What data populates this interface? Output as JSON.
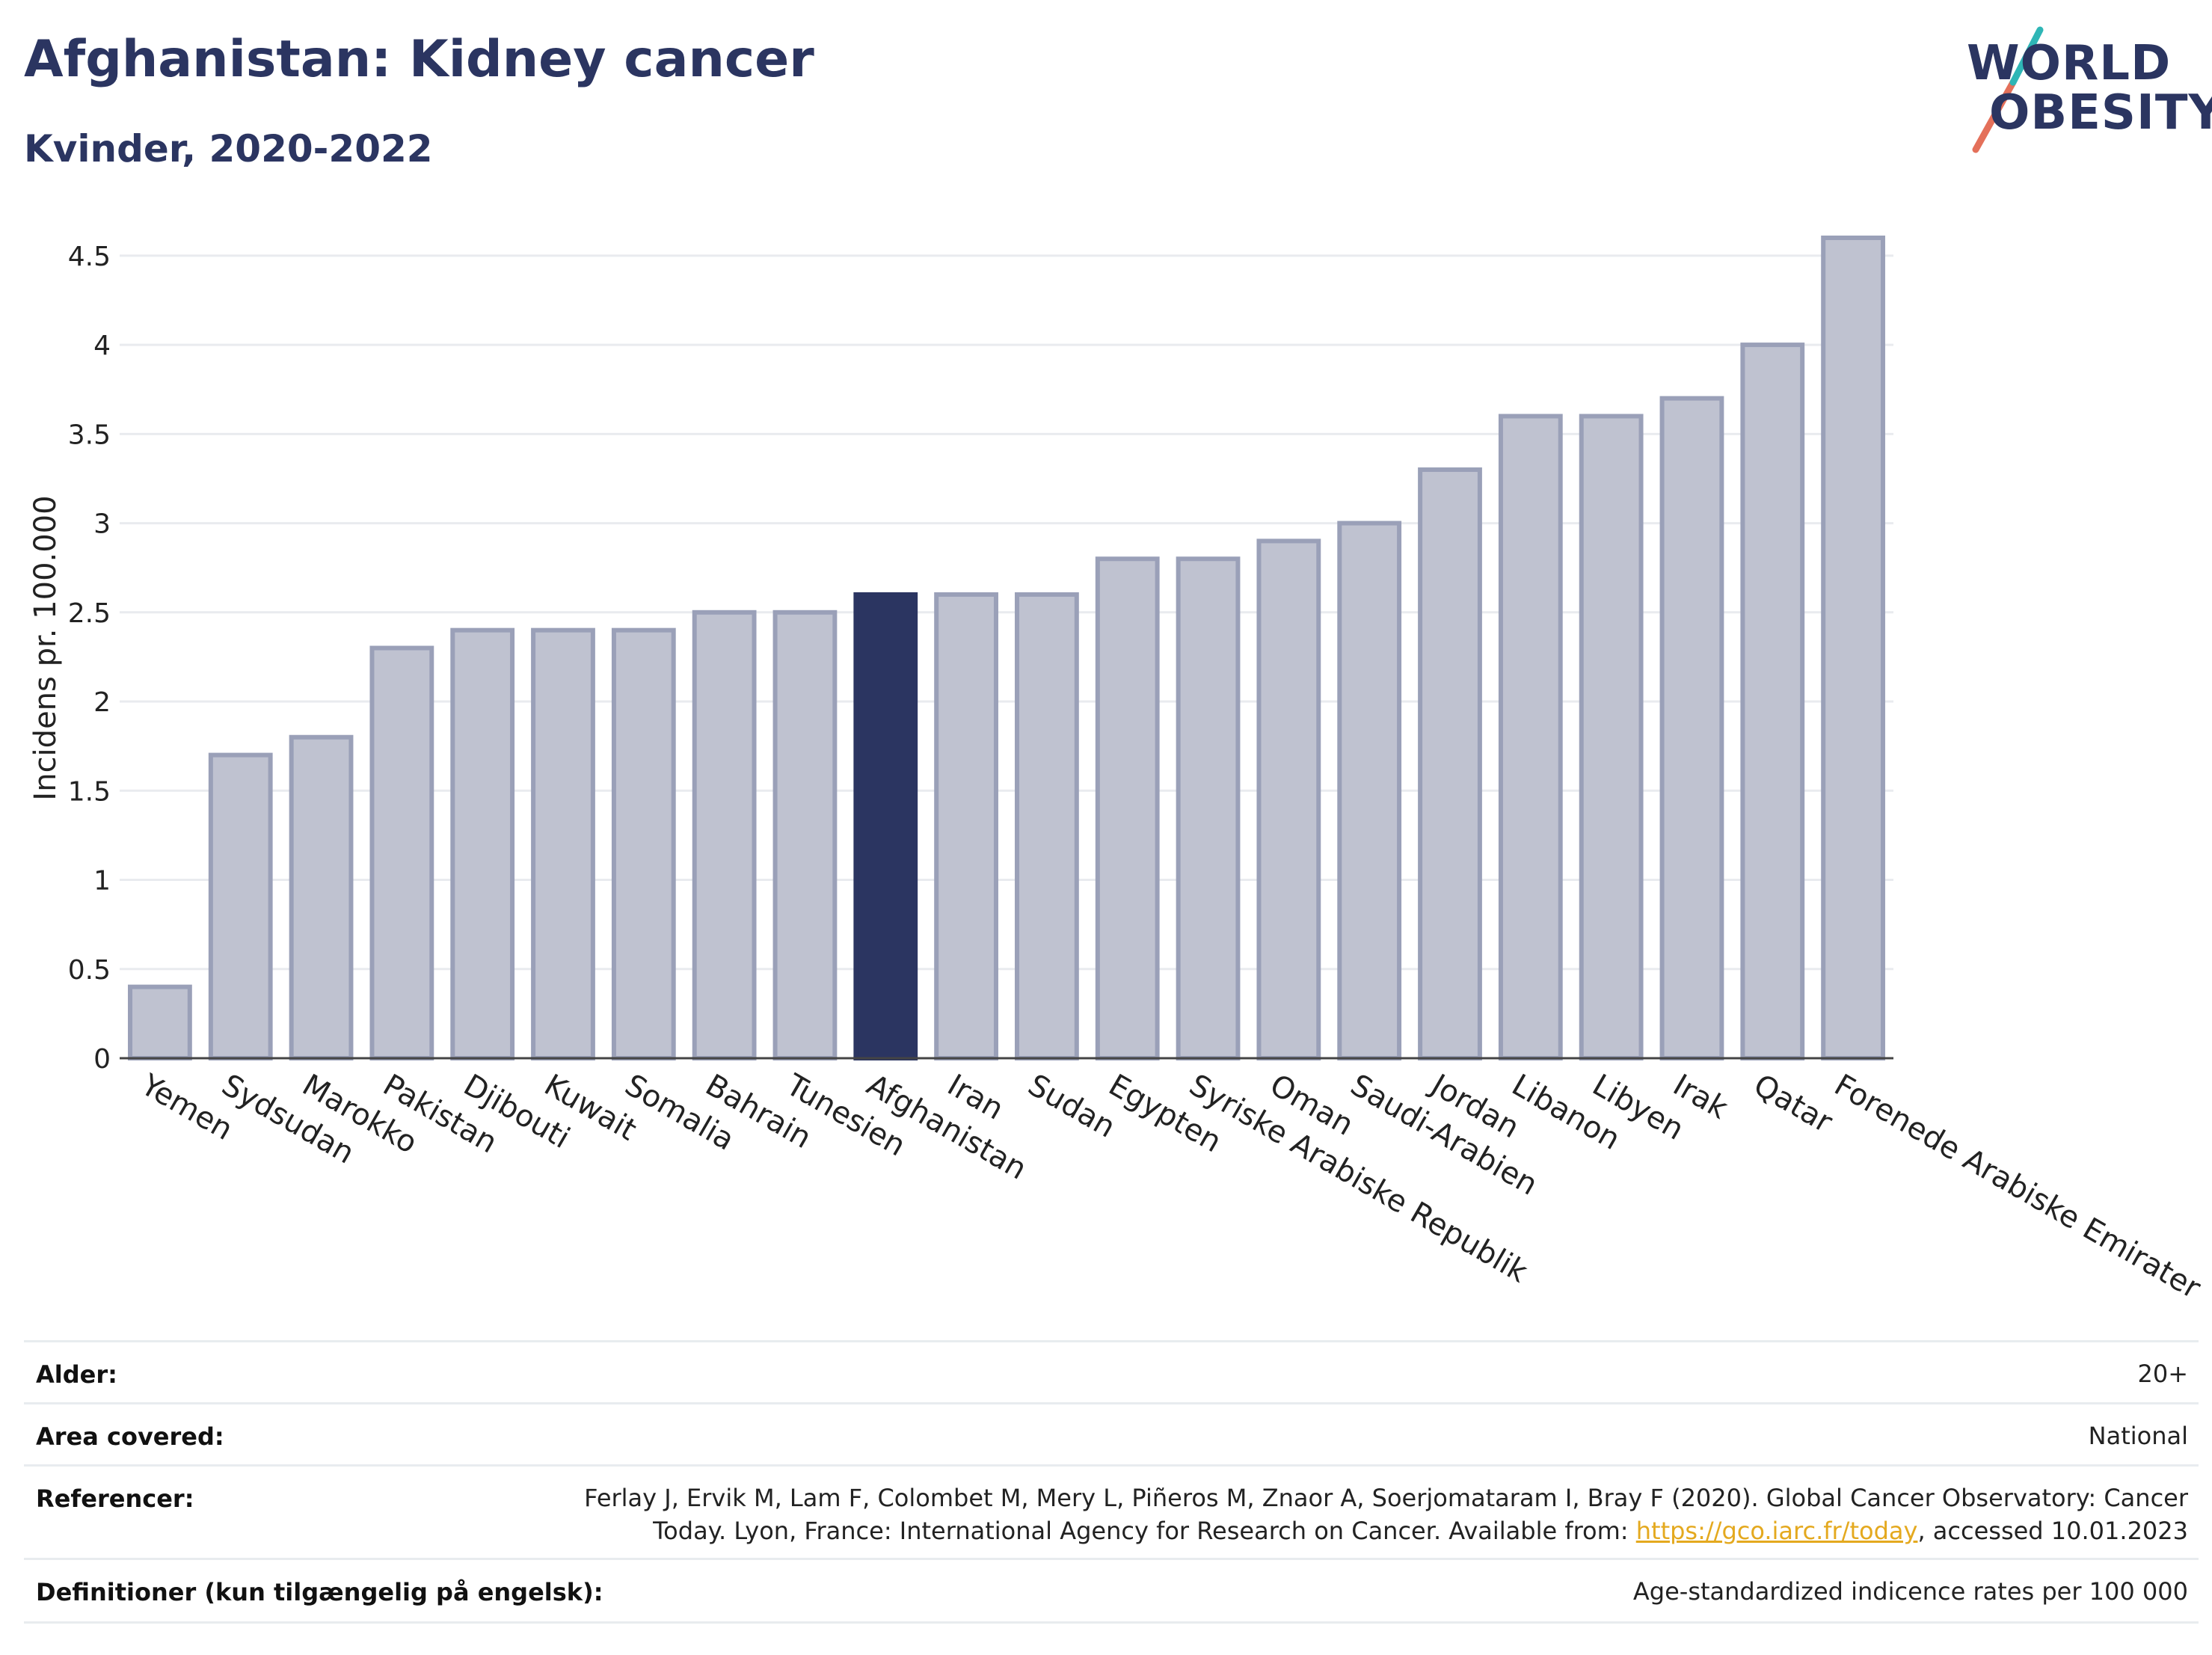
{
  "header": {
    "title": "Afghanistan: Kidney cancer",
    "subtitle": "Kvinder, 2020-2022"
  },
  "logo": {
    "line1": "WORLD",
    "line2": "OBESITY"
  },
  "colors": {
    "highlight": "#2b3561",
    "bar": "#bfc2d0",
    "bar_edge": "#9aa0b8",
    "link": "#e4a91f"
  },
  "chart_data": {
    "type": "bar",
    "title": "",
    "xlabel": "",
    "ylabel": "Incidens pr. 100.000",
    "ylim": [
      0,
      4.6
    ],
    "yticks": [
      "0",
      "0.5",
      "1",
      "1.5",
      "2",
      "2.5",
      "3",
      "3.5",
      "4",
      "4.5"
    ],
    "grid": true,
    "highlight": "Afghanistan",
    "categories": [
      "Yemen",
      "Sydsudan",
      "Marokko",
      "Pakistan",
      "Djibouti",
      "Kuwait",
      "Somalia",
      "Bahrain",
      "Tunesien",
      "Afghanistan",
      "Iran",
      "Sudan",
      "Egypten",
      "Syriske Arabiske Republik",
      "Oman",
      "Saudi-Arabien",
      "Jordan",
      "Libanon",
      "Libyen",
      "Irak",
      "Qatar",
      "Forenede Arabiske Emirater"
    ],
    "values": [
      0.4,
      1.7,
      1.8,
      2.3,
      2.4,
      2.4,
      2.4,
      2.5,
      2.5,
      2.6,
      2.6,
      2.6,
      2.8,
      2.8,
      2.9,
      3.0,
      3.3,
      3.6,
      3.6,
      3.7,
      4.0,
      4.6
    ]
  },
  "meta": {
    "rows": [
      {
        "label": "Alder:",
        "value": "20+"
      },
      {
        "label": "Area covered:",
        "value": "National"
      },
      {
        "label": "Referencer:",
        "value_line1": "Ferlay J, Ervik M, Lam F, Colombet M, Mery L, Piñeros M, Znaor A, Soerjomataram I, Bray F (2020). Global Cancer Observatory: Cancer",
        "value_line2_pre": "Today. Lyon, France: International Agency for Research on Cancer. Available from: ",
        "link": "https://gco.iarc.fr/today",
        "value_line2_post": ", accessed 10.01.2023"
      },
      {
        "label": "Definitioner (kun tilgængelig på engelsk):",
        "value": "Age-standardized indicence rates per 100 000"
      }
    ]
  }
}
